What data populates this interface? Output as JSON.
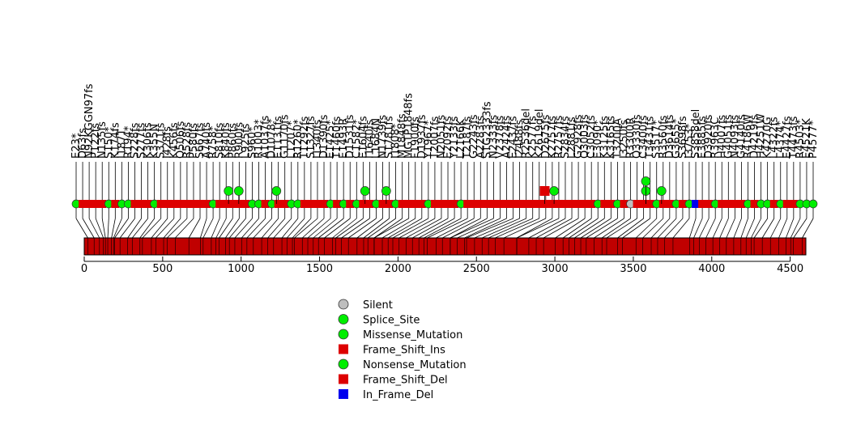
{
  "chart_data": {
    "type": "lollipop",
    "title": "",
    "xlabel": "",
    "ylabel": "",
    "protein_length": 4600,
    "xlim": [
      0,
      4600
    ],
    "x_ticks": [
      0,
      500,
      1000,
      1500,
      2000,
      2500,
      3000,
      3500,
      4000,
      4500
    ],
    "legend": [
      {
        "label": "Silent",
        "shape": "circle",
        "color": "#bebebe"
      },
      {
        "label": "Splice_Site",
        "shape": "circle",
        "color": "#00ee00"
      },
      {
        "label": "Missense_Mutation",
        "shape": "circle",
        "color": "#00ee00"
      },
      {
        "label": "Frame_Shift_Ins",
        "shape": "square",
        "color": "#dd0000"
      },
      {
        "label": "Nonsense_Mutation",
        "shape": "circle",
        "color": "#00ee00"
      },
      {
        "label": "Frame_Shift_Del",
        "shape": "square",
        "color": "#dd0000"
      },
      {
        "label": "In_Frame_Del",
        "shape": "square",
        "color": "#0000ee"
      }
    ],
    "stacked_markers": [
      {
        "position": 920,
        "types": [
          "Missense_Mutation"
        ]
      },
      {
        "position": 985,
        "types": [
          "Missense_Mutation"
        ]
      },
      {
        "position": 1225,
        "types": [
          "Missense_Mutation"
        ]
      },
      {
        "position": 1790,
        "types": [
          "Missense_Mutation"
        ]
      },
      {
        "position": 1925,
        "types": [
          "Missense_Mutation"
        ]
      },
      {
        "position": 2935,
        "types": [
          "Frame_Shift_Del"
        ]
      },
      {
        "position": 2995,
        "types": [
          "Missense_Mutation"
        ]
      },
      {
        "position": 3580,
        "types": [
          "Missense_Mutation",
          "Missense_Mutation"
        ]
      },
      {
        "position": 3680,
        "types": [
          "Missense_Mutation"
        ]
      }
    ],
    "mutation_labels": [
      "E23*",
      "D63fs",
      "N92KGGN97fs",
      "P122fs",
      "N135fs",
      "S150*",
      "K174fs",
      "I187T",
      "R194*",
      "S228fs",
      "S277fs",
      "K306fs",
      "K355N",
      "S371fs",
      "I428fs",
      "K456fs",
      "Q506fs",
      "R528fs",
      "P580fs",
      "S667fs",
      "A740fs",
      "R758*",
      "S810fs",
      "K840fs",
      "P860fs",
      "R900fs",
      "L925fs",
      "S960*",
      "R1003*",
      "A1037fs",
      "D1078*",
      "E1131fs",
      "G1170fs",
      "L1207*",
      "R1260*",
      "T1292fs",
      "S1327fs",
      "I1340fs",
      "D1390fs",
      "E1425*",
      "T1460fs",
      "E1493R",
      "D1531fs",
      "C1582*",
      "E1604fs",
      "I1640fs",
      "L1684N",
      "N1739fs",
      "S1781fs",
      "I1808*",
      "M1848fs",
      "MGTP1848fs",
      "F1900fs",
      "D1937fs",
      "Y1967*",
      "T2007fs",
      "N2051fs",
      "E2092fs",
      "Y2133fs",
      "L2166K",
      "T2187fs",
      "G2243fs",
      "A2283fs",
      "STG2333fs",
      "N2333fs",
      "V2378fs",
      "A2424fs",
      "E2437fs",
      "I2488fs",
      "R2536del",
      "K2577fs",
      "K2619del",
      "D2675fs",
      "K2757fs",
      "R2757fs",
      "S2834fs",
      "L2881fs",
      "G2928fs",
      "Q3003fs",
      "C3052fs",
      "E3090*",
      "K3125fs",
      "K3165fs",
      "T3200A",
      "I3250fs",
      "R3300R",
      "Q3330fs",
      "C3400fs",
      "T3431fs",
      "S3517*",
      "R3560fs",
      "D3614fs",
      "G3655*",
      "S3698fs",
      "I3753*",
      "S3858del",
      "E3885fs",
      "D3920fs",
      "R3963C",
      "H4007fs",
      "G4051fs",
      "N4093fs",
      "G4140fs",
      "R4186W",
      "D4219fs",
      "H4251W",
      "K4270G",
      "L4322fs",
      "L4374*",
      "E4427fs",
      "T4473fs",
      "R4503*",
      "E4521K",
      "P4577*"
    ]
  }
}
